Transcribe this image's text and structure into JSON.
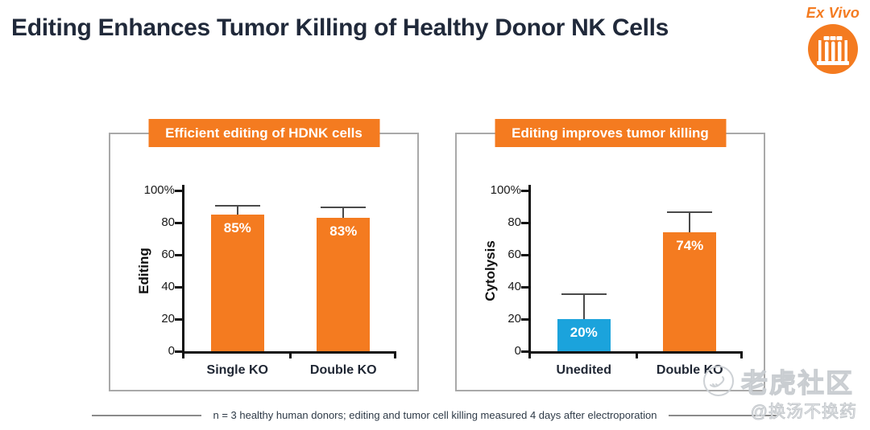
{
  "title": "Editing Enhances Tumor Killing of Healthy Donor NK Cells",
  "badge": {
    "label": "Ex Vivo",
    "icon": "test-tubes-icon",
    "color": "#F47B20"
  },
  "colors": {
    "orange": "#F47B20",
    "blue": "#1BA3DC",
    "navy": "#20293A",
    "panel_border": "#A9A9A9"
  },
  "chart_data": [
    {
      "type": "bar",
      "title": "Efficient editing of HDNK cells",
      "ylabel": "Editing",
      "xlabel": "",
      "ylim": [
        0,
        100
      ],
      "grid": false,
      "yticks": [
        {
          "v": 100,
          "label": "100%"
        },
        {
          "v": 80,
          "label": "80"
        },
        {
          "v": 60,
          "label": "60"
        },
        {
          "v": 40,
          "label": "40"
        },
        {
          "v": 20,
          "label": "20"
        },
        {
          "v": 0,
          "label": "0"
        }
      ],
      "categories": [
        "Single KO",
        "Double KO"
      ],
      "values": [
        85,
        83
      ],
      "error_top": [
        91,
        90
      ],
      "bar_labels": [
        "85%",
        "83%"
      ],
      "bar_colors": [
        "#F47B20",
        "#F47B20"
      ]
    },
    {
      "type": "bar",
      "title": "Editing improves tumor killing",
      "ylabel": "Cytolysis",
      "xlabel": "",
      "ylim": [
        0,
        100
      ],
      "grid": false,
      "yticks": [
        {
          "v": 100,
          "label": "100%"
        },
        {
          "v": 80,
          "label": "80"
        },
        {
          "v": 60,
          "label": "60"
        },
        {
          "v": 40,
          "label": "40"
        },
        {
          "v": 20,
          "label": "20"
        },
        {
          "v": 0,
          "label": "0"
        }
      ],
      "categories": [
        "Unedited",
        "Double KO"
      ],
      "values": [
        20,
        74
      ],
      "error_top": [
        36,
        87
      ],
      "bar_labels": [
        "20%",
        "74%"
      ],
      "bar_colors": [
        "#1BA3DC",
        "#F47B20"
      ]
    }
  ],
  "footnote": {
    "text": "n = 3 healthy human donors; editing and tumor cell killing measured 4 days after electroporation"
  },
  "watermark": {
    "community": "老虎社区",
    "handle": "@换汤不换药"
  }
}
